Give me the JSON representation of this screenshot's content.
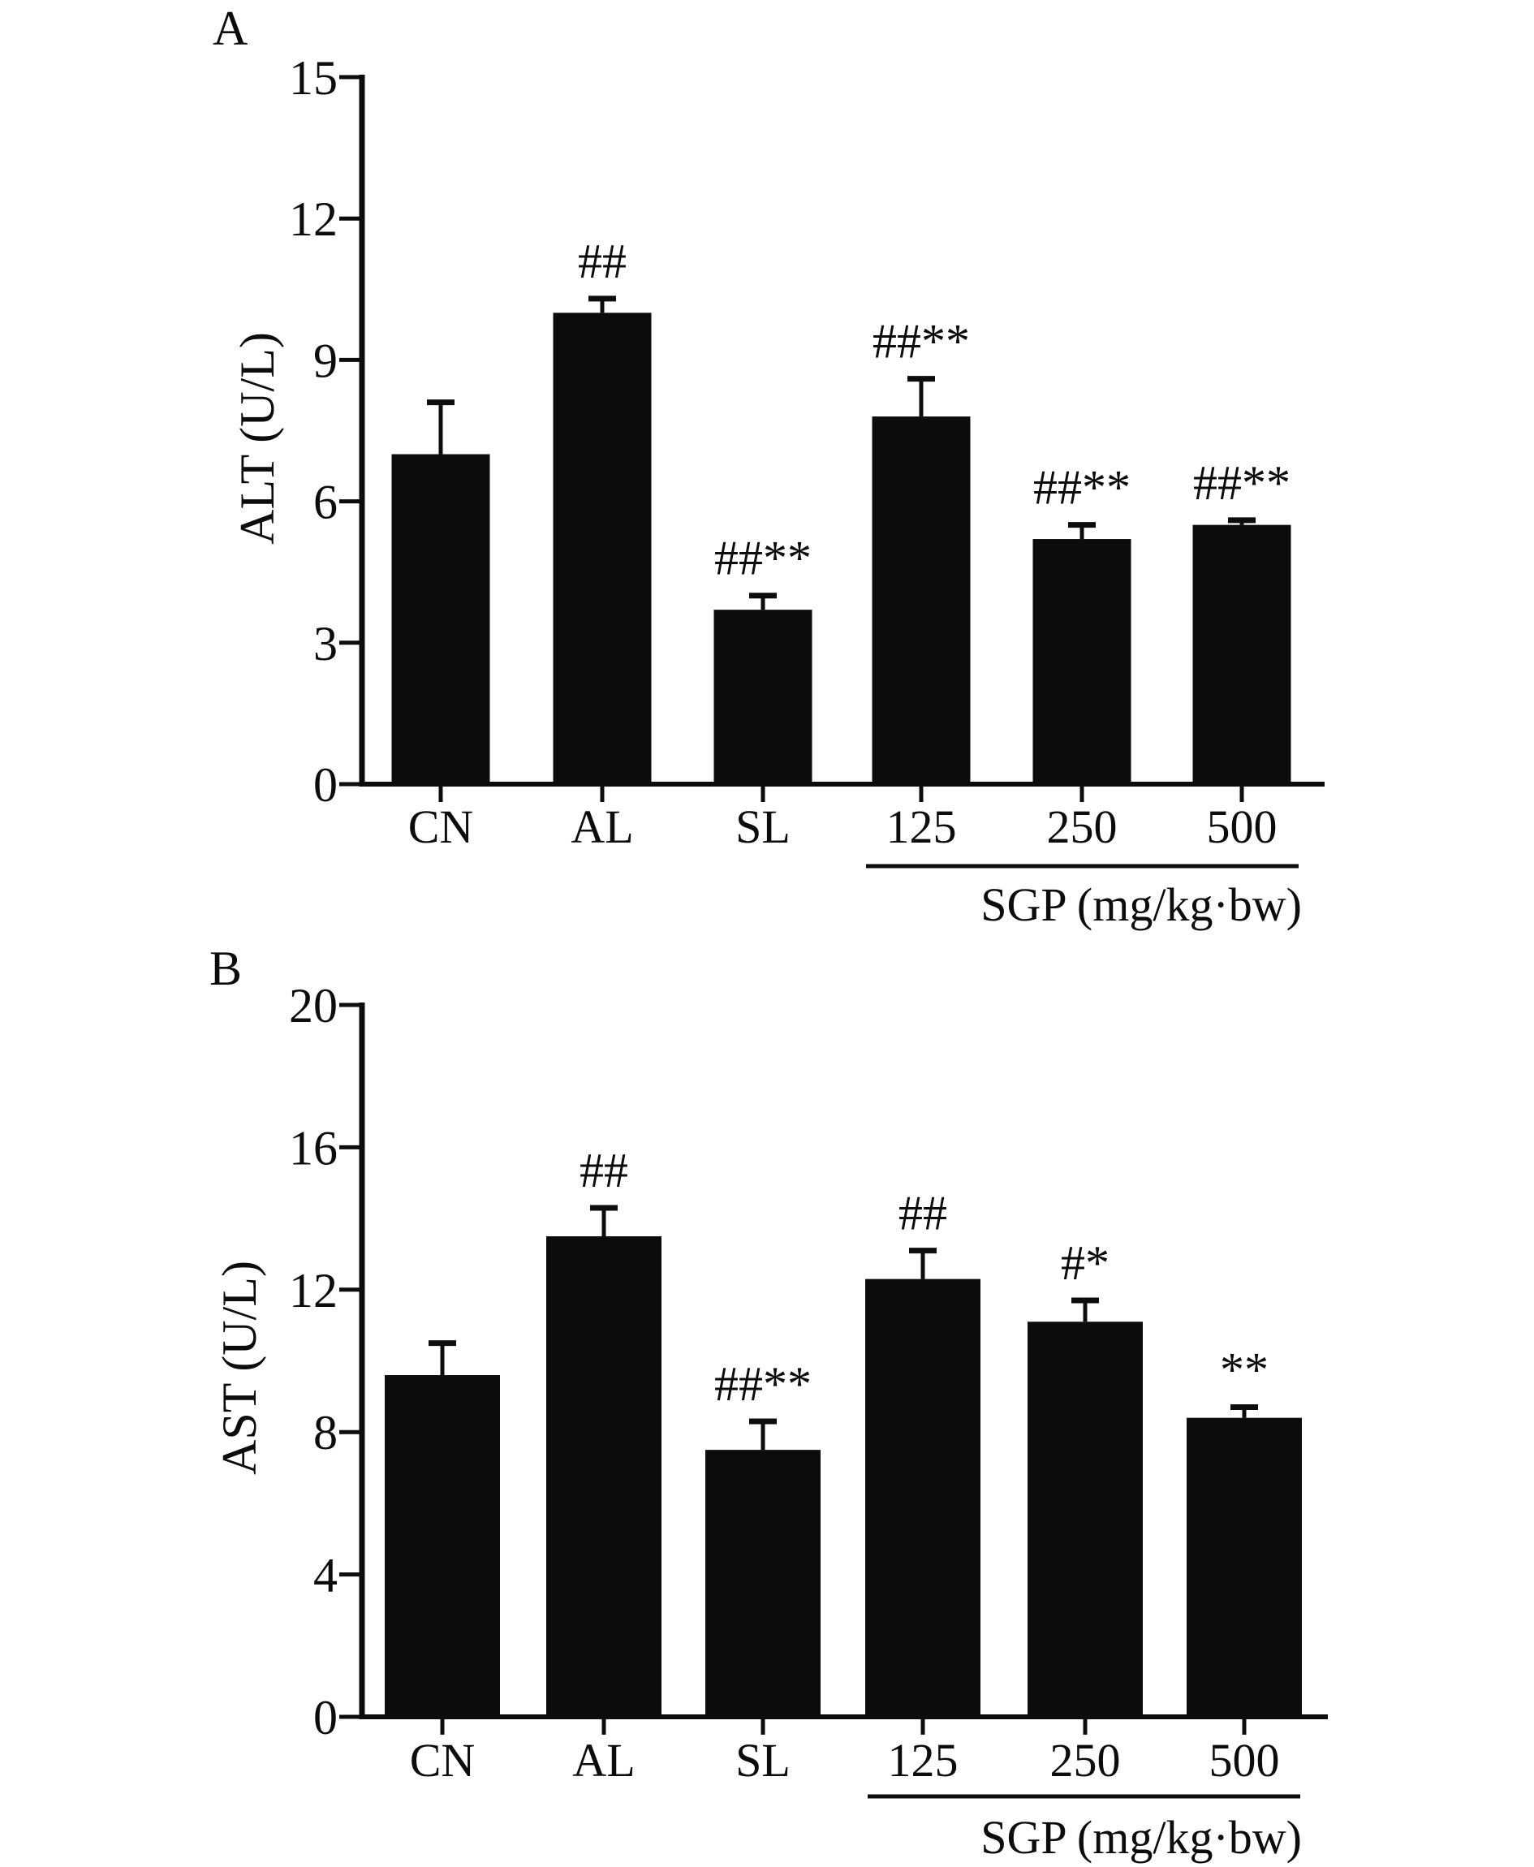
{
  "chart_data": [
    {
      "type": "bar",
      "panel_label": "A",
      "categories": [
        "CN",
        "AL",
        "SL",
        "125",
        "250",
        "500"
      ],
      "values": [
        7.0,
        10.0,
        3.7,
        7.8,
        5.2,
        5.5
      ],
      "error_upper": [
        8.1,
        10.3,
        4.0,
        8.6,
        5.5,
        5.6
      ],
      "annotations": [
        "",
        "##",
        "##**",
        "##**",
        "##**",
        "##**"
      ],
      "ylabel": "ALT (U/L)",
      "xlabel": "",
      "group_label": "SGP (mg/kg·bw)",
      "group_categories": [
        "125",
        "250",
        "500"
      ],
      "ylim": [
        0,
        15
      ],
      "yticks": [
        0,
        3,
        6,
        9,
        12,
        15
      ],
      "ytick_labels": [
        "0",
        "3",
        "6",
        "9",
        "12",
        "15"
      ],
      "grid": false,
      "bar_color": "#0b0c0b"
    },
    {
      "type": "bar",
      "panel_label": "B",
      "categories": [
        "CN",
        "AL",
        "SL",
        "125",
        "250",
        "500"
      ],
      "values": [
        9.6,
        13.5,
        7.5,
        12.3,
        11.1,
        8.4
      ],
      "error_upper": [
        10.5,
        14.3,
        8.3,
        13.1,
        11.7,
        8.7
      ],
      "annotations": [
        "",
        "##",
        "##**",
        "##",
        "#*",
        "**"
      ],
      "ylabel": "AST (U/L)",
      "xlabel": "",
      "group_label": "SGP (mg/kg·bw)",
      "group_categories": [
        "125",
        "250",
        "500"
      ],
      "ylim": [
        0,
        20
      ],
      "yticks": [
        0,
        4,
        8,
        12,
        16,
        20
      ],
      "ytick_labels": [
        "0",
        "4",
        "8",
        "12",
        "16",
        "20"
      ],
      "grid": false,
      "bar_color": "#0b0c0b"
    }
  ]
}
